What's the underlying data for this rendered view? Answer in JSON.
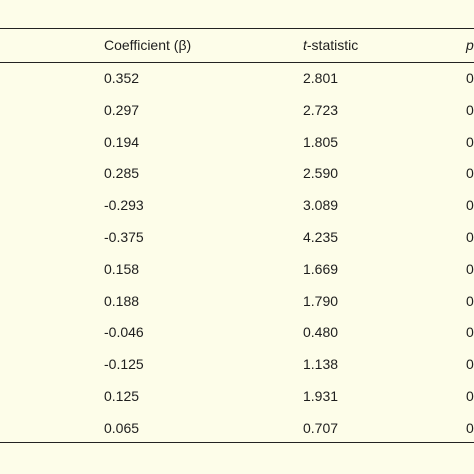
{
  "table": {
    "columns": {
      "coefficient": "Coefficient (β)",
      "t_stat_italic": "t",
      "t_stat_rest": "-statistic",
      "p_value": "p"
    },
    "rows": [
      {
        "coef": "0.352",
        "t": "2.801",
        "p": "0"
      },
      {
        "coef": "0.297",
        "t": "2.723",
        "p": "0"
      },
      {
        "coef": "0.194",
        "t": "1.805",
        "p": "0"
      },
      {
        "coef": "0.285",
        "t": "2.590",
        "p": "0"
      },
      {
        "coef": "-0.293",
        "t": "3.089",
        "p": "0"
      },
      {
        "coef": "-0.375",
        "t": "4.235",
        "p": "0"
      },
      {
        "coef": "0.158",
        "t": "1.669",
        "p": "0"
      },
      {
        "coef": "0.188",
        "t": "1.790",
        "p": "0"
      },
      {
        "coef": "-0.046",
        "t": "0.480",
        "p": "0"
      },
      {
        "coef": "-0.125",
        "t": "1.138",
        "p": "0"
      },
      {
        "coef": "0.125",
        "t": "1.931",
        "p": "0"
      },
      {
        "coef": "0.065",
        "t": "0.707",
        "p": "0"
      }
    ]
  }
}
